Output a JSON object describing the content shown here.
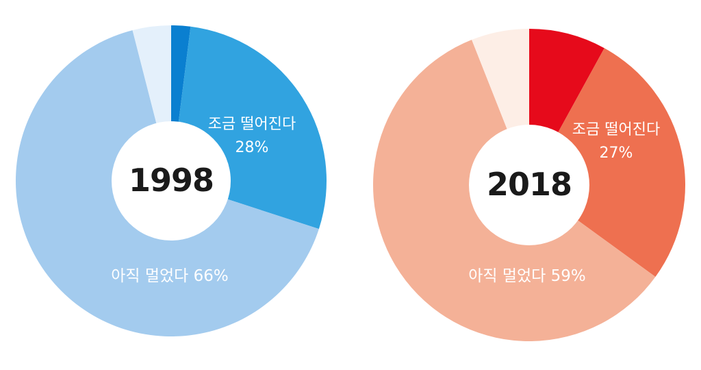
{
  "chart_data": [
    {
      "type": "pie",
      "title": "1998",
      "slices": [
        {
          "label": "",
          "value": 2,
          "color": "#0a7fd0"
        },
        {
          "label": "조금 떨어진다",
          "value": 28,
          "value_label": "28%",
          "color": "#31a3e0"
        },
        {
          "label": "아직 멀었다",
          "value": 66,
          "value_label": "66%",
          "color": "#a3cbee"
        },
        {
          "label": "",
          "value": 4,
          "color": "#e4f0fb"
        }
      ]
    },
    {
      "type": "pie",
      "title": "2018",
      "slices": [
        {
          "label": "",
          "value": 8,
          "color": "#e60a1b"
        },
        {
          "label": "조금 떨어진다",
          "value": 27,
          "value_label": "27%",
          "color": "#ee7050"
        },
        {
          "label": "아직 멀었다",
          "value": 59,
          "value_label": "59%",
          "color": "#f4b197"
        },
        {
          "label": "",
          "value": 6,
          "color": "#fdeee6"
        }
      ]
    }
  ]
}
